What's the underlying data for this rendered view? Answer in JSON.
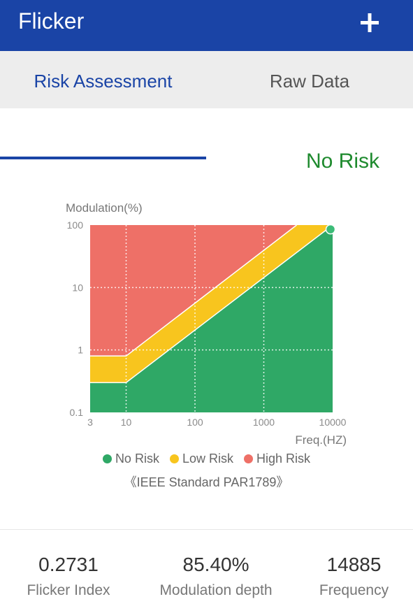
{
  "app_bar": {
    "title": "Flicker",
    "add_icon": "plus-icon"
  },
  "tabs": [
    {
      "label": "Risk Assessment",
      "active": true
    },
    {
      "label": "Raw Data",
      "active": false
    }
  ],
  "risk_status": "No Risk",
  "chart_data": {
    "type": "area",
    "ylabel": "Modulation(%)",
    "xlabel": "Freq.(HZ)",
    "x_scale": "log",
    "y_scale": "log",
    "x_ticks": [
      "3",
      "10",
      "100",
      "1000",
      "10000"
    ],
    "y_ticks": [
      "100",
      "10",
      "1",
      "0.1"
    ],
    "xlim": [
      3,
      10000
    ],
    "ylim": [
      0.1,
      100
    ],
    "grid": true,
    "regions": [
      {
        "name": "No Risk",
        "boundary": [
          [
            3,
            0.3
          ],
          [
            10,
            0.3
          ],
          [
            10000,
            100
          ]
        ]
      },
      {
        "name": "Low Risk",
        "boundary": [
          [
            3,
            0.8
          ],
          [
            10,
            0.8
          ],
          [
            3000,
            100
          ]
        ]
      },
      {
        "name": "High Risk",
        "boundary": [
          [
            3,
            100
          ],
          [
            10000,
            100
          ]
        ]
      }
    ],
    "marker": {
      "x": 14885,
      "y": 85.4
    },
    "legend": [
      {
        "label": "No Risk",
        "color": "#2fa866"
      },
      {
        "label": "Low Risk",
        "color": "#f8c51e"
      },
      {
        "label": "High Risk",
        "color": "#ee7067"
      }
    ],
    "legend_position": "bottom",
    "colors": {
      "no_risk": "#2fa866",
      "low_risk": "#f8c51e",
      "high_risk": "#ee7067",
      "marker": "#3cbc78"
    }
  },
  "standard_note": "《IEEE Standard PAR1789》",
  "stats": [
    {
      "value": "0.2731",
      "label": "Flicker Index"
    },
    {
      "value": "85.40%",
      "label": "Modulation depth"
    },
    {
      "value": "14885",
      "label": "Frequency"
    }
  ]
}
